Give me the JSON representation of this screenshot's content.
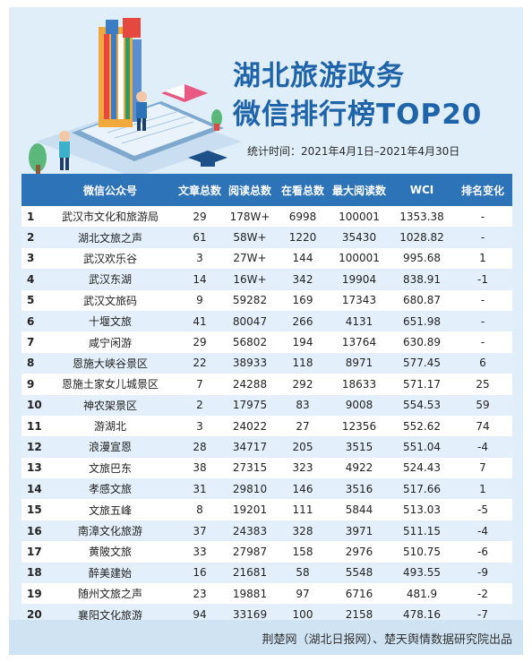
{
  "header": {
    "title_line1": "湖北旅游政务",
    "title_line2": "微信排行榜TOP20",
    "stat_time": "统计时间：2021年4月1日–2021年4月30日"
  },
  "colors": {
    "title": "#1f64a9",
    "header_bg": "#2d73b8",
    "stripe": "#e3f0fb",
    "poster_bg": "#dfeef9"
  },
  "table": {
    "columns": [
      "",
      "微信公众号",
      "文章总数",
      "阅读总数",
      "在看总数",
      "最大阅读数",
      "WCI",
      "排名变化"
    ],
    "rows": [
      [
        "1",
        "武汉市文化和旅游局",
        "29",
        "178W+",
        "6998",
        "100001",
        "1353.38",
        "-"
      ],
      [
        "2",
        "湖北文旅之声",
        "61",
        "58W+",
        "1220",
        "35430",
        "1028.82",
        "-"
      ],
      [
        "3",
        "武汉欢乐谷",
        "3",
        "27W+",
        "144",
        "100001",
        "995.68",
        "1"
      ],
      [
        "4",
        "武汉东湖",
        "14",
        "16W+",
        "342",
        "19904",
        "838.91",
        "-1"
      ],
      [
        "5",
        "武汉文旅码",
        "9",
        "59282",
        "169",
        "17343",
        "680.87",
        "-"
      ],
      [
        "6",
        "十堰文旅",
        "41",
        "80047",
        "266",
        "4131",
        "651.98",
        "-"
      ],
      [
        "7",
        "咸宁闲游",
        "29",
        "56802",
        "194",
        "13764",
        "630.89",
        "-"
      ],
      [
        "8",
        "恩施大峡谷景区",
        "22",
        "38933",
        "118",
        "8971",
        "577.45",
        "6"
      ],
      [
        "9",
        "恩施土家女儿城景区",
        "7",
        "24288",
        "292",
        "18633",
        "571.17",
        "25"
      ],
      [
        "10",
        "神农架景区",
        "2",
        "17975",
        "83",
        "9008",
        "554.53",
        "59"
      ],
      [
        "11",
        "游湖北",
        "3",
        "24022",
        "27",
        "12356",
        "552.62",
        "74"
      ],
      [
        "12",
        "浪漫宣恩",
        "28",
        "34717",
        "205",
        "3515",
        "551.04",
        "-4"
      ],
      [
        "13",
        "文旅巴东",
        "38",
        "27315",
        "323",
        "4922",
        "524.43",
        "7"
      ],
      [
        "14",
        "孝感文旅",
        "31",
        "29810",
        "146",
        "3516",
        "517.66",
        "1"
      ],
      [
        "15",
        "文旅五峰",
        "8",
        "19201",
        "111",
        "5844",
        "513.03",
        "-5"
      ],
      [
        "16",
        "南漳文化旅游",
        "37",
        "24383",
        "328",
        "3971",
        "511.15",
        "-4"
      ],
      [
        "17",
        "黄陂文旅",
        "33",
        "27987",
        "158",
        "2976",
        "510.75",
        "-6"
      ],
      [
        "18",
        "醉美建始",
        "16",
        "21681",
        "58",
        "5548",
        "493.55",
        "-9"
      ],
      [
        "19",
        "随州文旅之声",
        "23",
        "19881",
        "97",
        "6716",
        "481.9",
        "-2"
      ],
      [
        "20",
        "襄阳文化旅游",
        "94",
        "33169",
        "100",
        "2158",
        "478.16",
        "-7"
      ]
    ]
  },
  "footer": {
    "credit": "荆楚网（湖北日报网）、楚天舆情数据研究院出品"
  }
}
